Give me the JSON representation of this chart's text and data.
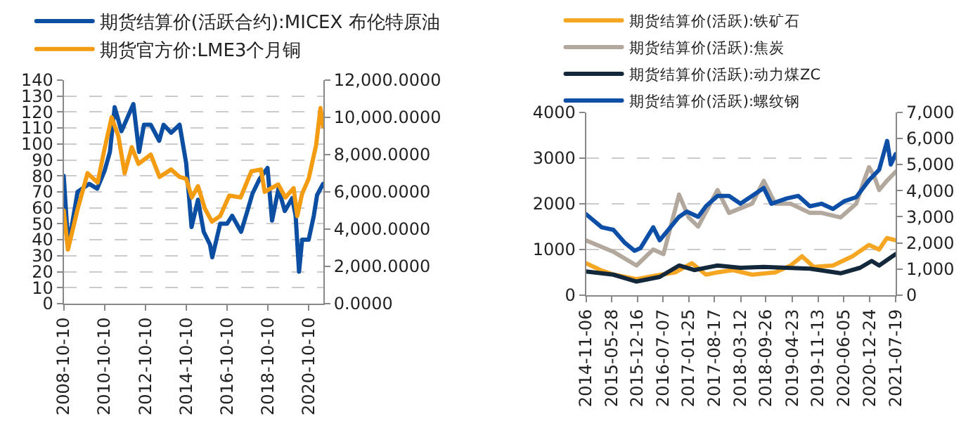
{
  "chart_data": [
    {
      "type": "line",
      "legend": "top",
      "grid": "y",
      "xlim": [
        "2008-10-10",
        "2021-07-01"
      ],
      "ylim": [
        0,
        140
      ],
      "y2lim": [
        0,
        12000
      ],
      "xticks": [
        {
          "value": "2008-10-10",
          "label": "2008-10-10"
        },
        {
          "value": "2010-10-10",
          "label": "2010-10-10"
        },
        {
          "value": "2012-10-10",
          "label": "2012-10-10"
        },
        {
          "value": "2014-10-10",
          "label": "2014-10-10"
        },
        {
          "value": "2016-10-10",
          "label": "2016-10-10"
        },
        {
          "value": "2018-10-10",
          "label": "2018-10-10"
        },
        {
          "value": "2020-10-10",
          "label": "2020-10-10"
        }
      ],
      "yticks": [
        0,
        10,
        20,
        30,
        40,
        50,
        60,
        70,
        80,
        90,
        100,
        110,
        120,
        130,
        140
      ],
      "y2ticks": [
        {
          "value": 0,
          "label": "0.0000"
        },
        {
          "value": 2000,
          "label": "2,000.0000"
        },
        {
          "value": 4000,
          "label": "4,000.0000"
        },
        {
          "value": 6000,
          "label": "6,000.0000"
        },
        {
          "value": 8000,
          "label": "8,000.0000"
        },
        {
          "value": 10000,
          "label": "10,000.0000"
        },
        {
          "value": 12000,
          "label": "12,000.0000"
        }
      ],
      "series": [
        {
          "name": "期货结算价(活跃合约):MICEX 布伦特原油",
          "color": "#0b4ea2",
          "x": [
            "2008-10-10",
            "2008-12-20",
            "2009-03-01",
            "2009-06-15",
            "2010-01-10",
            "2010-06-01",
            "2010-10-10",
            "2011-01-15",
            "2011-04-10",
            "2011-08-10",
            "2012-03-10",
            "2012-06-20",
            "2012-09-15",
            "2013-01-15",
            "2013-06-15",
            "2013-09-01",
            "2014-01-15",
            "2014-06-15",
            "2014-10-10",
            "2015-01-15",
            "2015-05-10",
            "2015-08-20",
            "2015-12-10",
            "2016-01-20",
            "2016-06-10",
            "2016-10-10",
            "2017-01-10",
            "2017-06-20",
            "2017-10-10",
            "2018-01-10",
            "2018-05-15",
            "2018-10-05",
            "2018-12-25",
            "2019-04-20",
            "2019-08-10",
            "2019-12-20",
            "2020-02-20",
            "2020-04-21",
            "2020-06-15",
            "2020-10-10",
            "2021-01-10",
            "2021-03-10",
            "2021-06-25"
          ],
          "values": [
            80,
            42,
            48,
            70,
            75,
            72,
            83,
            95,
            123,
            108,
            125,
            95,
            112,
            112,
            102,
            112,
            107,
            112,
            88,
            48,
            65,
            45,
            37,
            29,
            50,
            50,
            55,
            45,
            58,
            69,
            78,
            85,
            52,
            72,
            58,
            66,
            55,
            20,
            40,
            40,
            55,
            68,
            75
          ]
        },
        {
          "name": "期货官方价:LME3个月铜",
          "color": "#f39c12",
          "axis": "y2",
          "x": [
            "2008-10-10",
            "2008-12-25",
            "2009-06-10",
            "2009-12-10",
            "2010-06-10",
            "2010-10-10",
            "2011-02-15",
            "2011-06-15",
            "2011-10-05",
            "2012-02-10",
            "2012-06-10",
            "2013-01-15",
            "2013-06-20",
            "2014-01-15",
            "2014-06-15",
            "2014-10-10",
            "2015-01-20",
            "2015-05-10",
            "2015-09-10",
            "2016-01-15",
            "2016-06-10",
            "2016-11-20",
            "2017-06-10",
            "2017-12-20",
            "2018-06-10",
            "2018-08-15",
            "2019-04-15",
            "2019-08-20",
            "2020-01-15",
            "2020-03-20",
            "2020-06-15",
            "2020-10-10",
            "2021-02-20",
            "2021-05-10",
            "2021-06-25"
          ],
          "values": [
            5000,
            2900,
            5000,
            7000,
            6500,
            8300,
            10000,
            9000,
            7000,
            8400,
            7500,
            8000,
            6800,
            7200,
            6800,
            6700,
            5700,
            6300,
            5100,
            4400,
            4700,
            5800,
            5700,
            7100,
            7200,
            6000,
            6400,
            5700,
            6200,
            4700,
            5900,
            6700,
            8500,
            10500,
            9500
          ]
        }
      ]
    },
    {
      "type": "line",
      "legend": "top",
      "grid": "y",
      "xlim": [
        "2014-11-06",
        "2021-07-19"
      ],
      "ylim": [
        0,
        4000
      ],
      "y2lim": [
        0,
        7000
      ],
      "xticks": [
        {
          "value": "2014-11-06",
          "label": "2014-11-06"
        },
        {
          "value": "2015-05-28",
          "label": "2015-05-28"
        },
        {
          "value": "2015-12-16",
          "label": "2015-12-16"
        },
        {
          "value": "2016-07-07",
          "label": "2016-07-07"
        },
        {
          "value": "2017-01-25",
          "label": "2017-01-25"
        },
        {
          "value": "2017-08-17",
          "label": "2017-08-17"
        },
        {
          "value": "2018-03-12",
          "label": "2018-03-12"
        },
        {
          "value": "2018-09-26",
          "label": "2018-09-26"
        },
        {
          "value": "2019-04-23",
          "label": "2019-04-23"
        },
        {
          "value": "2019-11-13",
          "label": "2019-11-13"
        },
        {
          "value": "2020-06-05",
          "label": "2020-06-05"
        },
        {
          "value": "2020-12-24",
          "label": "2020-12-24"
        },
        {
          "value": "2021-07-19",
          "label": "2021-07-19"
        }
      ],
      "yticks": [
        0,
        1000,
        2000,
        3000,
        4000
      ],
      "y2ticks": [
        {
          "value": 0,
          "label": "0"
        },
        {
          "value": 1000,
          "label": "1,000"
        },
        {
          "value": 2000,
          "label": "2,000"
        },
        {
          "value": 3000,
          "label": "3,000"
        },
        {
          "value": 4000,
          "label": "4,000"
        },
        {
          "value": 5000,
          "label": "5,000"
        },
        {
          "value": 6000,
          "label": "6,000"
        },
        {
          "value": 7000,
          "label": "7,000"
        }
      ],
      "series": [
        {
          "name": "期货结算价(活跃):铁矿石",
          "color": "#f5a623",
          "x": [
            "2014-11-06",
            "2015-03-01",
            "2015-06-15",
            "2015-12-10",
            "2016-04-20",
            "2016-10-10",
            "2017-02-20",
            "2017-06-10",
            "2017-09-10",
            "2018-01-10",
            "2018-06-10",
            "2018-12-10",
            "2019-04-10",
            "2019-07-10",
            "2019-10-10",
            "2020-03-10",
            "2020-08-10",
            "2020-12-20",
            "2021-03-10",
            "2021-05-10",
            "2021-07-19"
          ],
          "values": [
            700,
            550,
            450,
            350,
            420,
            500,
            700,
            450,
            500,
            550,
            450,
            500,
            650,
            850,
            620,
            650,
            850,
            1100,
            1000,
            1250,
            1200
          ]
        },
        {
          "name": "期货结算价(活跃):焦炭",
          "color": "#b3a89d",
          "x": [
            "2014-11-06",
            "2015-06-10",
            "2015-12-10",
            "2016-04-20",
            "2016-07-10",
            "2016-11-10",
            "2017-01-25",
            "2017-04-10",
            "2017-09-10",
            "2017-12-10",
            "2018-03-10",
            "2018-06-10",
            "2018-09-10",
            "2018-12-10",
            "2019-04-10",
            "2019-09-10",
            "2019-12-10",
            "2020-05-10",
            "2020-09-10",
            "2020-11-10",
            "2020-12-20",
            "2021-01-30",
            "2021-03-10",
            "2021-05-10",
            "2021-07-19"
          ],
          "values": [
            1200,
            950,
            650,
            1000,
            900,
            2200,
            1700,
            1500,
            2300,
            1800,
            1900,
            2000,
            2500,
            2000,
            2000,
            1800,
            1800,
            1700,
            2000,
            2500,
            2800,
            2600,
            2300,
            2500,
            2700
          ]
        },
        {
          "name": "期货结算价(活跃):动力煤ZC",
          "color": "#13283a",
          "x": [
            "2014-11-06",
            "2015-06-10",
            "2015-12-10",
            "2016-06-10",
            "2016-11-10",
            "2017-03-10",
            "2017-09-10",
            "2018-03-10",
            "2018-09-10",
            "2019-03-10",
            "2019-09-10",
            "2020-05-10",
            "2020-10-10",
            "2021-01-10",
            "2021-03-10",
            "2021-07-19"
          ],
          "values": [
            520,
            450,
            300,
            400,
            650,
            550,
            650,
            600,
            620,
            600,
            580,
            480,
            600,
            750,
            650,
            900
          ]
        },
        {
          "name": "期货结算价(活跃):螺纹钢",
          "color": "#0d4ea6",
          "axis": "y2",
          "x": [
            "2014-11-06",
            "2015-03-10",
            "2015-06-10",
            "2015-09-10",
            "2015-11-25",
            "2016-01-10",
            "2016-04-20",
            "2016-06-10",
            "2016-11-10",
            "2017-01-10",
            "2017-04-10",
            "2017-06-10",
            "2017-09-10",
            "2017-12-10",
            "2018-03-10",
            "2018-06-10",
            "2018-09-10",
            "2018-11-10",
            "2019-03-10",
            "2019-06-10",
            "2019-09-10",
            "2019-12-10",
            "2020-03-10",
            "2020-06-10",
            "2020-09-10",
            "2020-12-20",
            "2021-03-10",
            "2021-05-12",
            "2021-06-10",
            "2021-07-19"
          ],
          "values": [
            3100,
            2600,
            2500,
            2000,
            1700,
            1800,
            2600,
            2100,
            3000,
            3200,
            3000,
            3400,
            3800,
            3800,
            3500,
            3800,
            4100,
            3500,
            3700,
            3800,
            3400,
            3500,
            3300,
            3600,
            3750,
            4400,
            4800,
            5900,
            5000,
            5400
          ]
        }
      ]
    }
  ]
}
